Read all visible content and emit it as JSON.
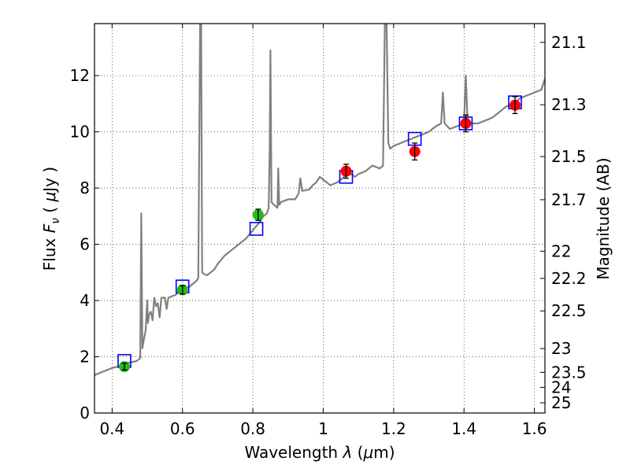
{
  "chart_data": {
    "type": "scatter",
    "title": "",
    "xlabel": "Wavelength  λ (μm)",
    "ylabel": "Flux  F_ν  ( μJy )",
    "ylabel_parts": {
      "pre": "Flux  ",
      "sym": "F",
      "sub": "ν",
      "mid": "  ( ",
      "mu": "μ",
      "unit": "Jy )"
    },
    "xlabel_parts": {
      "pre": "Wavelength  ",
      "lambda": "λ",
      "mid": " (",
      "mu": "μ",
      "unit": "m)"
    },
    "y2label": "Magnitude (AB)",
    "xlim": [
      0.35,
      1.63
    ],
    "ylim": [
      0,
      13.85
    ],
    "grid": true,
    "x_ticks": [
      0.4,
      0.6,
      0.8,
      1.0,
      1.2,
      1.4,
      1.6
    ],
    "x_tick_labels": [
      "0.4",
      "0.6",
      "0.8",
      "1",
      "1.2",
      "1.4",
      "1.6"
    ],
    "y_ticks": [
      0,
      2,
      4,
      6,
      8,
      10,
      12
    ],
    "y_tick_labels": [
      "0",
      "2",
      "4",
      "6",
      "8",
      "10",
      "12"
    ],
    "mag_ticks": [
      21.1,
      21.3,
      21.5,
      21.7,
      22,
      22.2,
      22.5,
      23,
      23.5,
      24,
      25
    ],
    "mag_tick_labels": [
      "21.1",
      "21.3",
      "21.5",
      "21.7",
      "22",
      "22.2",
      "22.5",
      "23",
      "23.5",
      "24",
      "25"
    ],
    "series": [
      {
        "name": "model_spectrum",
        "kind": "line",
        "color": "#808080",
        "points": [
          [
            0.35,
            1.35
          ],
          [
            0.36,
            1.4
          ],
          [
            0.37,
            1.45
          ],
          [
            0.38,
            1.5
          ],
          [
            0.39,
            1.55
          ],
          [
            0.4,
            1.6
          ],
          [
            0.41,
            1.63
          ],
          [
            0.42,
            1.66
          ],
          [
            0.43,
            1.7
          ],
          [
            0.44,
            1.75
          ],
          [
            0.45,
            1.8
          ],
          [
            0.46,
            1.82
          ],
          [
            0.47,
            1.85
          ],
          [
            0.475,
            1.9
          ],
          [
            0.48,
            1.95
          ],
          [
            0.483,
            7.1
          ],
          [
            0.486,
            2.3
          ],
          [
            0.49,
            2.6
          ],
          [
            0.495,
            2.9
          ],
          [
            0.5,
            4.0
          ],
          [
            0.502,
            3.2
          ],
          [
            0.505,
            3.5
          ],
          [
            0.51,
            3.6
          ],
          [
            0.515,
            3.3
          ],
          [
            0.52,
            4.1
          ],
          [
            0.525,
            3.8
          ],
          [
            0.53,
            3.9
          ],
          [
            0.535,
            3.4
          ],
          [
            0.54,
            4.1
          ],
          [
            0.55,
            4.1
          ],
          [
            0.555,
            3.7
          ],
          [
            0.56,
            4.1
          ],
          [
            0.57,
            4.15
          ],
          [
            0.58,
            4.2
          ],
          [
            0.59,
            4.3
          ],
          [
            0.6,
            4.4
          ],
          [
            0.61,
            4.45
          ],
          [
            0.62,
            4.5
          ],
          [
            0.63,
            4.6
          ],
          [
            0.64,
            4.7
          ],
          [
            0.645,
            4.8
          ],
          [
            0.65,
            13.85
          ],
          [
            0.653,
            13.85
          ],
          [
            0.656,
            5.0
          ],
          [
            0.66,
            4.95
          ],
          [
            0.67,
            4.9
          ],
          [
            0.68,
            5.0
          ],
          [
            0.69,
            5.1
          ],
          [
            0.7,
            5.3
          ],
          [
            0.72,
            5.6
          ],
          [
            0.74,
            5.8
          ],
          [
            0.76,
            6.0
          ],
          [
            0.78,
            6.2
          ],
          [
            0.8,
            6.5
          ],
          [
            0.82,
            6.8
          ],
          [
            0.83,
            7.0
          ],
          [
            0.84,
            7.1
          ],
          [
            0.845,
            7.3
          ],
          [
            0.848,
            9.4
          ],
          [
            0.85,
            12.9
          ],
          [
            0.853,
            7.5
          ],
          [
            0.86,
            7.4
          ],
          [
            0.87,
            7.3
          ],
          [
            0.872,
            8.7
          ],
          [
            0.875,
            7.4
          ],
          [
            0.88,
            7.5
          ],
          [
            0.9,
            7.6
          ],
          [
            0.92,
            7.6
          ],
          [
            0.93,
            7.8
          ],
          [
            0.935,
            8.35
          ],
          [
            0.94,
            7.9
          ],
          [
            0.96,
            7.95
          ],
          [
            0.97,
            8.1
          ],
          [
            0.98,
            8.2
          ],
          [
            0.99,
            8.4
          ],
          [
            1.0,
            8.3
          ],
          [
            1.02,
            8.1
          ],
          [
            1.04,
            8.2
          ],
          [
            1.06,
            8.4
          ],
          [
            1.08,
            8.5
          ],
          [
            1.09,
            8.4
          ],
          [
            1.1,
            8.5
          ],
          [
            1.12,
            8.6
          ],
          [
            1.14,
            8.8
          ],
          [
            1.16,
            8.7
          ],
          [
            1.17,
            8.8
          ],
          [
            1.175,
            13.85
          ],
          [
            1.18,
            13.85
          ],
          [
            1.185,
            9.6
          ],
          [
            1.19,
            9.4
          ],
          [
            1.2,
            9.5
          ],
          [
            1.22,
            9.6
          ],
          [
            1.24,
            9.7
          ],
          [
            1.26,
            9.8
          ],
          [
            1.28,
            9.9
          ],
          [
            1.3,
            10.0
          ],
          [
            1.32,
            10.2
          ],
          [
            1.335,
            10.3
          ],
          [
            1.34,
            11.4
          ],
          [
            1.345,
            10.3
          ],
          [
            1.36,
            10.1
          ],
          [
            1.38,
            10.2
          ],
          [
            1.4,
            10.3
          ],
          [
            1.405,
            12.0
          ],
          [
            1.41,
            10.4
          ],
          [
            1.42,
            10.3
          ],
          [
            1.44,
            10.3
          ],
          [
            1.46,
            10.4
          ],
          [
            1.48,
            10.5
          ],
          [
            1.5,
            10.7
          ],
          [
            1.52,
            10.9
          ],
          [
            1.54,
            11.0
          ],
          [
            1.56,
            11.2
          ],
          [
            1.58,
            11.3
          ],
          [
            1.6,
            11.4
          ],
          [
            1.62,
            11.5
          ],
          [
            1.63,
            11.9
          ]
        ]
      },
      {
        "name": "model_photometry",
        "kind": "square",
        "color": "#0000ff",
        "points": [
          [
            0.435,
            1.85
          ],
          [
            0.6,
            4.5
          ],
          [
            0.81,
            6.55
          ],
          [
            1.065,
            8.4
          ],
          [
            1.26,
            9.75
          ],
          [
            1.405,
            10.3
          ],
          [
            1.545,
            11.05
          ]
        ]
      },
      {
        "name": "observed_optical",
        "kind": "circle",
        "color": "#22bb22",
        "points": [
          {
            "x": 0.435,
            "y": 1.65,
            "err": 0.12
          },
          {
            "x": 0.6,
            "y": 4.38,
            "err": 0.15
          },
          {
            "x": 0.815,
            "y": 7.05,
            "err": 0.2
          }
        ]
      },
      {
        "name": "observed_nir",
        "kind": "circle",
        "color": "#ff0000",
        "points": [
          {
            "x": 1.065,
            "y": 8.6,
            "err": 0.25
          },
          {
            "x": 1.26,
            "y": 9.3,
            "err": 0.3
          },
          {
            "x": 1.405,
            "y": 10.3,
            "err": 0.3
          },
          {
            "x": 1.545,
            "y": 10.95,
            "err": 0.3
          }
        ]
      }
    ]
  }
}
